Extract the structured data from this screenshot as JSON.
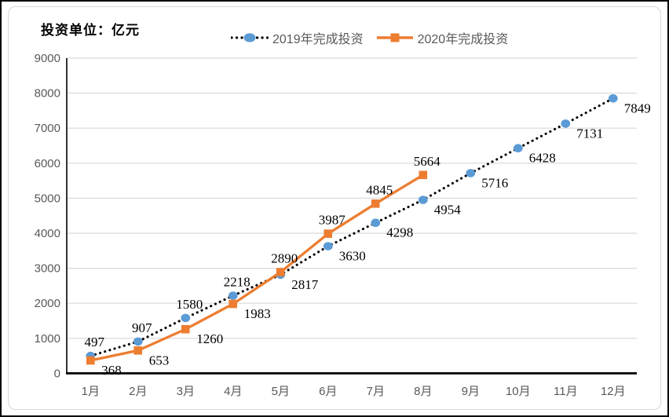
{
  "chart": {
    "unit_label": "投资单位：亿元"
  },
  "chart_data": {
    "type": "line",
    "title": "",
    "xlabel": "",
    "ylabel": "投资单位：亿元",
    "categories": [
      "1月",
      "2月",
      "3月",
      "4月",
      "5月",
      "6月",
      "7月",
      "8月",
      "9月",
      "10月",
      "11月",
      "12月"
    ],
    "series": [
      {
        "name": "2019年完成投资",
        "values": [
          497,
          907,
          1580,
          2218,
          2817,
          3630,
          4298,
          4954,
          5716,
          6428,
          7131,
          7849
        ],
        "marker": "circle",
        "marker_color": "#5B9BD5",
        "line_color": "#000000",
        "line_style": "dotted",
        "label_pos": [
          "above",
          "above",
          "above",
          "above",
          "below-right",
          "below-right",
          "below-right",
          "below-right",
          "below-right",
          "below-right",
          "below-right",
          "below-right"
        ]
      },
      {
        "name": "2020年完成投资",
        "values": [
          368,
          653,
          1260,
          1983,
          2890,
          3987,
          4845,
          5664
        ],
        "marker": "square",
        "marker_color": "#ED7D31",
        "line_color": "#ED7D31",
        "line_style": "solid",
        "label_pos": [
          "below-right",
          "below-right",
          "below-right",
          "below-right",
          "above",
          "above",
          "above",
          "above"
        ]
      }
    ],
    "ylim": [
      0,
      9000
    ],
    "y_ticks": [
      0,
      1000,
      2000,
      3000,
      4000,
      5000,
      6000,
      7000,
      8000,
      9000
    ],
    "grid": true,
    "legend_position": "top",
    "colors": {
      "gridline": "#D9D9D9",
      "axis": "#000000",
      "axis_text": "#595959",
      "data_label": "#000000"
    }
  }
}
